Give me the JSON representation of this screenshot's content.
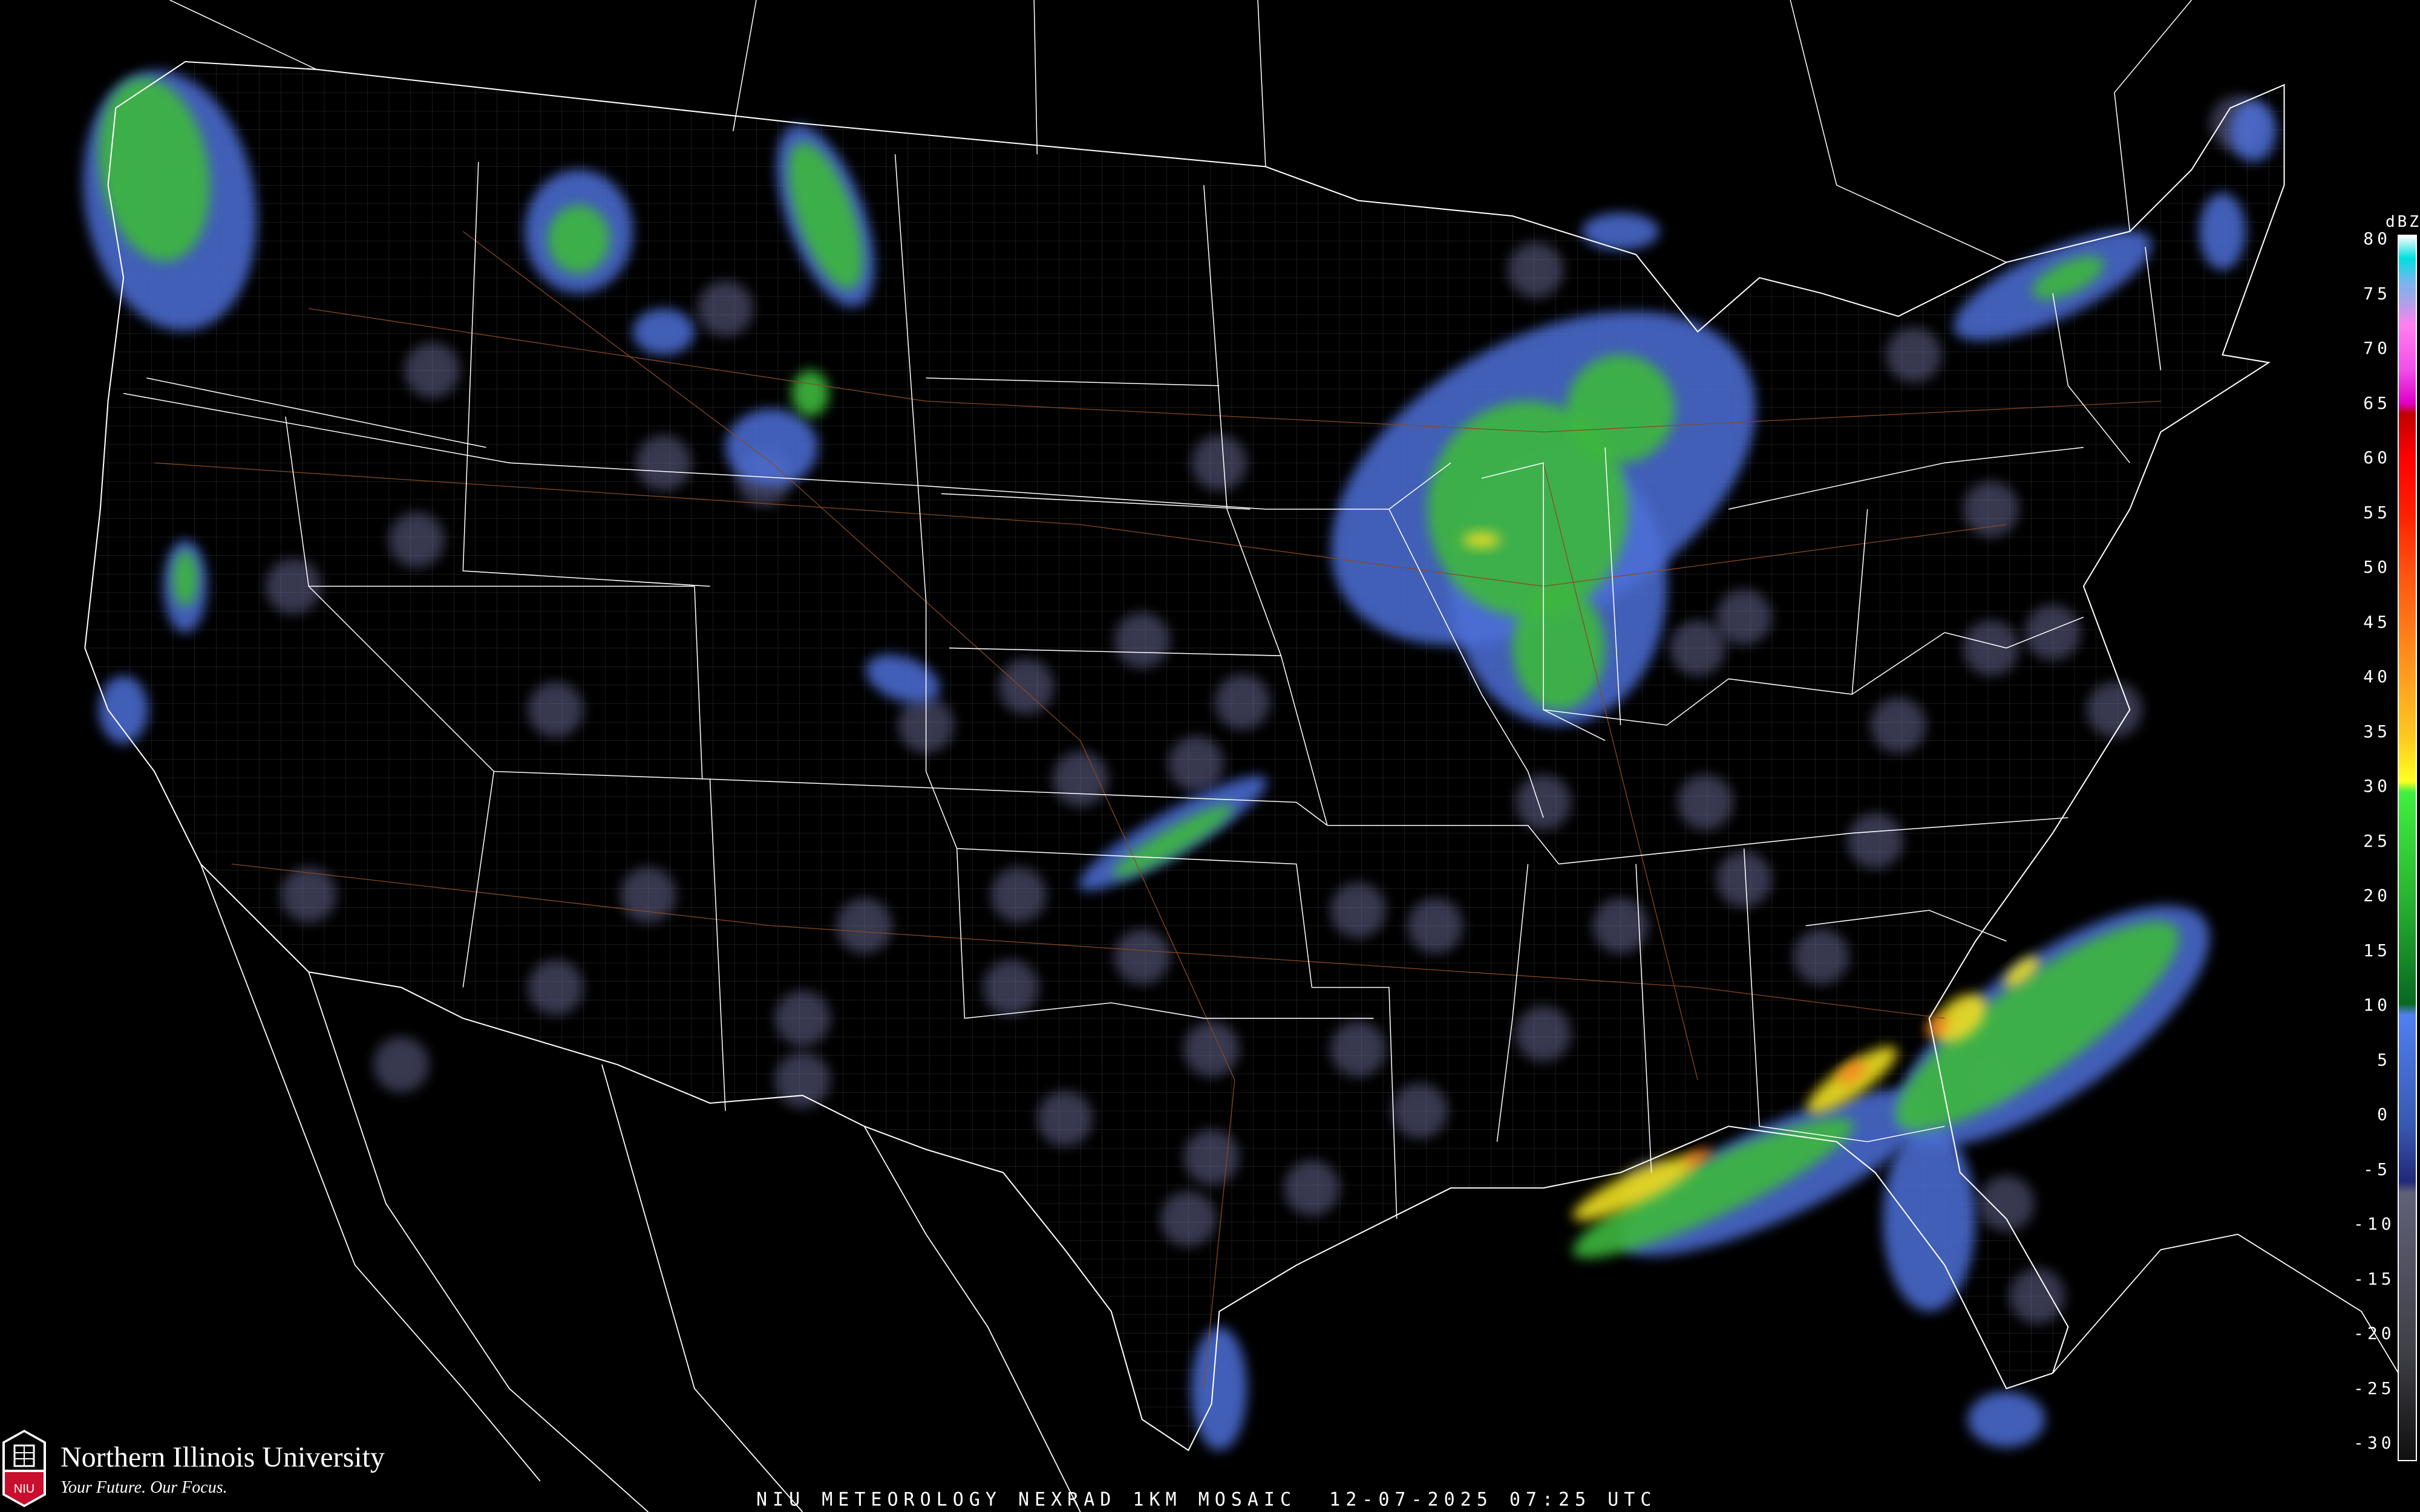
{
  "footer": {
    "title": "NIU METEOROLOGY NEXRAD 1KM MOSAIC  12-07-2025 07:25 UTC"
  },
  "logo": {
    "name": "Northern Illinois University",
    "tagline": "Your Future. Our Focus.",
    "shield_text": "NIU"
  },
  "colorbar": {
    "unit": "dBZ",
    "labels": [
      "80",
      "75",
      "70",
      "65",
      "60",
      "55",
      "50",
      "45",
      "40",
      "35",
      "30",
      "25",
      "20",
      "15",
      "10",
      "5",
      "0",
      "-5",
      "-10",
      "-15",
      "-20",
      "-25",
      "-30"
    ],
    "colors": [
      {
        "dbz": 80,
        "color": "#ffffff"
      },
      {
        "dbz": 78,
        "color": "#00e0e0"
      },
      {
        "dbz": 76,
        "color": "#70b8f0"
      },
      {
        "dbz": 74,
        "color": "#b0a0e8"
      },
      {
        "dbz": 72,
        "color": "#ff80f0"
      },
      {
        "dbz": 68,
        "color": "#f050e8"
      },
      {
        "dbz": 65,
        "color": "#e000c8"
      },
      {
        "dbz": 64,
        "color": "#c00000"
      },
      {
        "dbz": 60,
        "color": "#ff0000"
      },
      {
        "dbz": 55,
        "color": "#ff2000"
      },
      {
        "dbz": 50,
        "color": "#ff5010"
      },
      {
        "dbz": 45,
        "color": "#ff7818"
      },
      {
        "dbz": 40,
        "color": "#ffa020"
      },
      {
        "dbz": 35,
        "color": "#ffc820"
      },
      {
        "dbz": 31,
        "color": "#ffff20"
      },
      {
        "dbz": 30,
        "color": "#40f040"
      },
      {
        "dbz": 20,
        "color": "#28b030"
      },
      {
        "dbz": 11,
        "color": "#086820"
      },
      {
        "dbz": 10,
        "color": "#5080f0"
      },
      {
        "dbz": 0,
        "color": "#3858b0"
      },
      {
        "dbz": -5,
        "color": "#202878"
      },
      {
        "dbz": -6,
        "color": "#606078"
      },
      {
        "dbz": -20,
        "color": "#404048"
      },
      {
        "dbz": -30,
        "color": "#101010"
      }
    ]
  },
  "map_colors": {
    "borders": "#ffffff",
    "counties": "#3a3a3a",
    "highways": "#8a4a20",
    "clutter": "#7c7cb0",
    "light_echo": "#4d6fd8",
    "moderate_echo": "#3cb83c",
    "heavy_echo": "#f0e020",
    "intense_echo": "#ff8020"
  }
}
